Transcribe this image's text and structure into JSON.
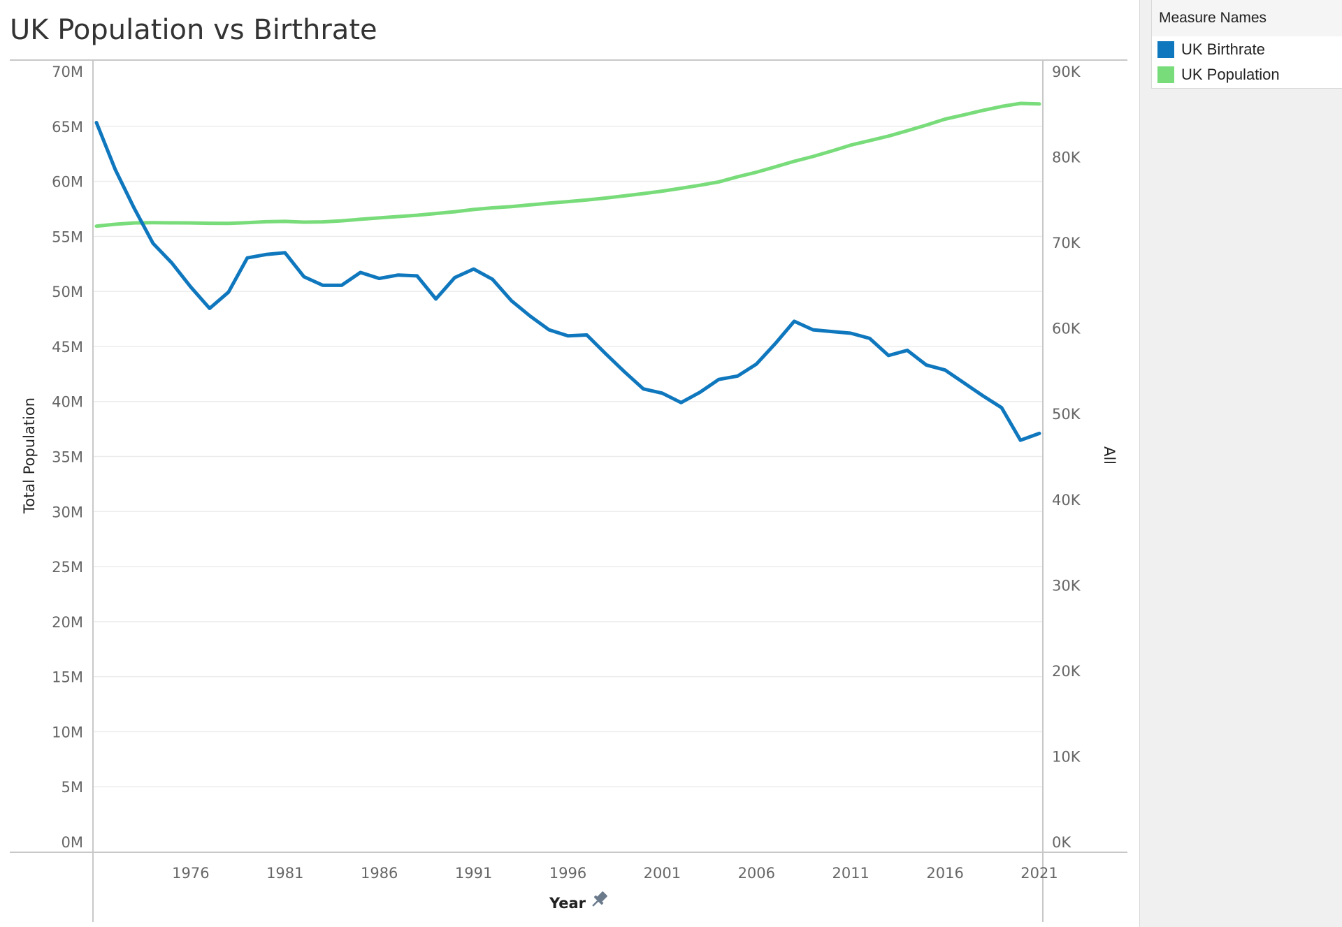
{
  "title": "UK Population vs Birthrate",
  "legend": {
    "title": "Measure Names",
    "items": [
      {
        "label": "UK Birthrate",
        "color": "#0F77BD"
      },
      {
        "label": "UK Population",
        "color": "#79DC7A"
      }
    ]
  },
  "chart_data": {
    "type": "line",
    "title": "UK Population vs Birthrate",
    "xlabel": "Year",
    "ylabel_left": "Total Population",
    "ylabel_right": "All",
    "x_icon": "pin-icon",
    "xlim": [
      1971,
      2021
    ],
    "x_ticks": [
      1976,
      1981,
      1986,
      1991,
      1996,
      2001,
      2006,
      2011,
      2016,
      2021
    ],
    "ylim_left": [
      0,
      70000000
    ],
    "y_ticks_left": [
      "0M",
      "5M",
      "10M",
      "15M",
      "20M",
      "25M",
      "30M",
      "35M",
      "40M",
      "45M",
      "50M",
      "55M",
      "60M",
      "65M",
      "70M"
    ],
    "ylim_right": [
      0,
      90000
    ],
    "y_ticks_right": [
      "0K",
      "10K",
      "20K",
      "30K",
      "40K",
      "50K",
      "60K",
      "70K",
      "80K",
      "90K"
    ],
    "grid": true,
    "legend_position": "top-right",
    "series": [
      {
        "name": "UK Population",
        "axis": "left",
        "color": "#79DC7A",
        "x": [
          1971,
          1972,
          1973,
          1974,
          1975,
          1976,
          1977,
          1978,
          1979,
          1980,
          1981,
          1982,
          1983,
          1984,
          1985,
          1986,
          1987,
          1988,
          1989,
          1990,
          1991,
          1992,
          1993,
          1994,
          1995,
          1996,
          1997,
          1998,
          1999,
          2000,
          2001,
          2002,
          2003,
          2004,
          2005,
          2006,
          2007,
          2008,
          2009,
          2010,
          2011,
          2012,
          2013,
          2014,
          2015,
          2016,
          2017,
          2018,
          2019,
          2020,
          2021
        ],
        "values": [
          55930000,
          56100000,
          56220000,
          56240000,
          56230000,
          56220000,
          56190000,
          56180000,
          56240000,
          56330000,
          56360000,
          56290000,
          56320000,
          56410000,
          56550000,
          56680000,
          56800000,
          56920000,
          57080000,
          57240000,
          57440000,
          57590000,
          57710000,
          57860000,
          58020000,
          58160000,
          58310000,
          58480000,
          58680000,
          58890000,
          59110000,
          59370000,
          59640000,
          59950000,
          60410000,
          60830000,
          61320000,
          61820000,
          62260000,
          62760000,
          63290000,
          63700000,
          64110000,
          64600000,
          65110000,
          65650000,
          66040000,
          66440000,
          66800000,
          67080000,
          67030000
        ]
      },
      {
        "name": "UK Birthrate",
        "axis": "right",
        "color": "#0F77BD",
        "x": [
          1971,
          1972,
          1973,
          1974,
          1975,
          1976,
          1977,
          1978,
          1979,
          1980,
          1981,
          1982,
          1983,
          1984,
          1985,
          1986,
          1987,
          1988,
          1989,
          1990,
          1991,
          1992,
          1993,
          1994,
          1995,
          1996,
          1997,
          1998,
          1999,
          2000,
          2001,
          2002,
          2003,
          2004,
          2005,
          2006,
          2007,
          2008,
          2009,
          2010,
          2011,
          2012,
          2013,
          2014,
          2015,
          2016,
          2017,
          2018,
          2019,
          2020,
          2021
        ],
        "values": [
          84000,
          78500,
          74000,
          69900,
          67600,
          64800,
          62300,
          64200,
          68200,
          68600,
          68800,
          66000,
          65000,
          65000,
          66500,
          65800,
          66200,
          66100,
          63400,
          65900,
          66900,
          65700,
          63200,
          61400,
          59800,
          59100,
          59200,
          57000,
          54900,
          52900,
          52400,
          51300,
          52500,
          54000,
          54400,
          55800,
          58200,
          60800,
          59800,
          59600,
          59400,
          58800,
          56800,
          57400,
          55700,
          55100,
          53600,
          52100,
          50700,
          46900,
          47700
        ]
      }
    ]
  }
}
